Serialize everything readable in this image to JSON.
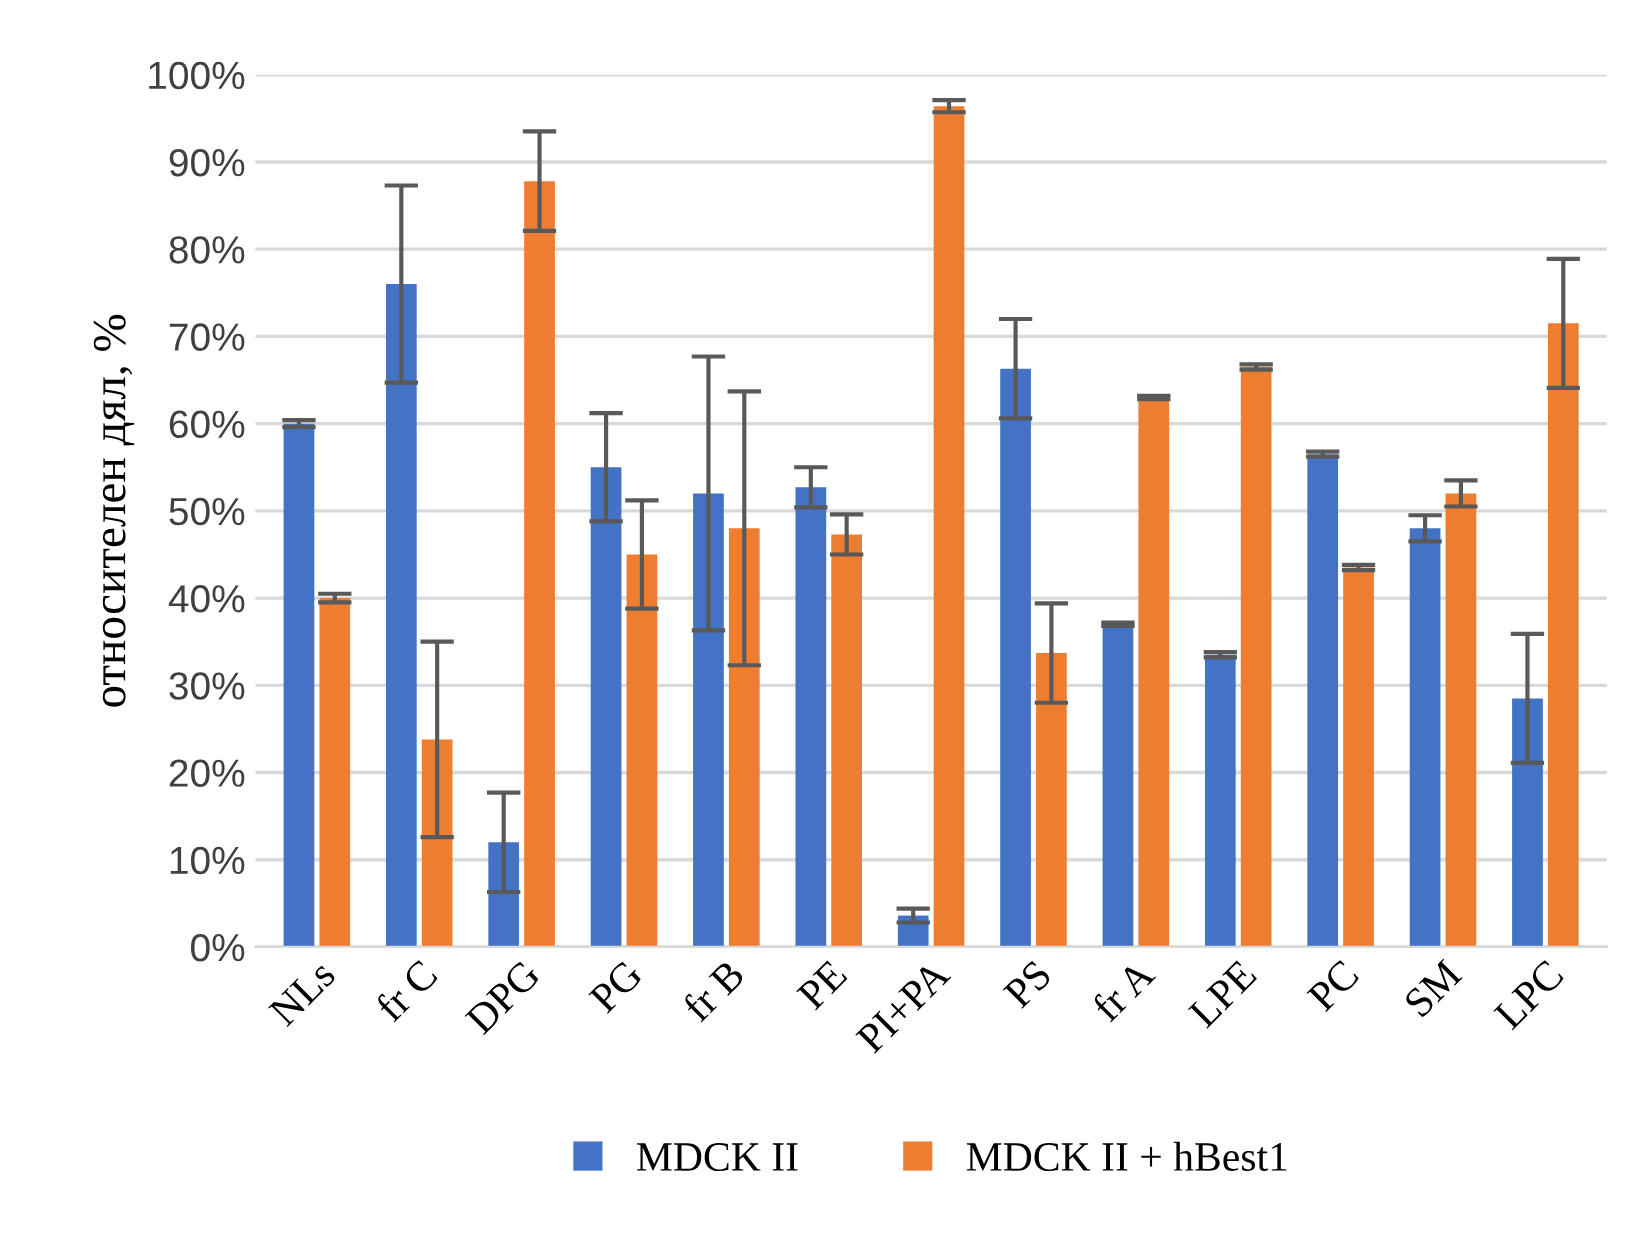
{
  "chart_data": {
    "type": "bar",
    "ylabel": "относителен дял, %",
    "categories": [
      "NLs",
      "fr C",
      "DPG",
      "PG",
      "fr B",
      "PE",
      "PI+PA",
      "PS",
      "fr A",
      "LPE",
      "PC",
      "SM",
      "LPC"
    ],
    "series": [
      {
        "name": "MDCK II",
        "color": "#4472c4",
        "values": [
          60,
          76,
          12,
          55,
          52,
          52.7,
          3.6,
          66.3,
          37,
          33.5,
          56.5,
          48,
          28.5
        ],
        "errors": [
          0.4,
          11.3,
          5.7,
          6.2,
          15.7,
          2.3,
          0.8,
          5.7,
          0.2,
          0.3,
          0.3,
          1.5,
          7.4
        ]
      },
      {
        "name": "MDCK II + hBest1",
        "color": "#ed7d31",
        "values": [
          40,
          23.8,
          87.8,
          45,
          48,
          47.3,
          96.4,
          33.7,
          63,
          66.5,
          43.5,
          52,
          71.5
        ],
        "errors": [
          0.5,
          11.2,
          5.7,
          6.2,
          15.7,
          2.3,
          0.7,
          5.7,
          0.2,
          0.3,
          0.3,
          1.5,
          7.4
        ]
      }
    ],
    "ylim": [
      0,
      100
    ],
    "yticks": [
      {
        "value": 0,
        "label": "0%"
      },
      {
        "value": 10,
        "label": "10%"
      },
      {
        "value": 20,
        "label": "20%"
      },
      {
        "value": 30,
        "label": "30%"
      },
      {
        "value": 40,
        "label": "40%"
      },
      {
        "value": 50,
        "label": "50%"
      },
      {
        "value": 60,
        "label": "60%"
      },
      {
        "value": 70,
        "label": "70%"
      },
      {
        "value": 80,
        "label": "80%"
      },
      {
        "value": 90,
        "label": "90%"
      },
      {
        "value": 100,
        "label": "100%"
      }
    ],
    "grid": "y",
    "legend": "bottom"
  }
}
